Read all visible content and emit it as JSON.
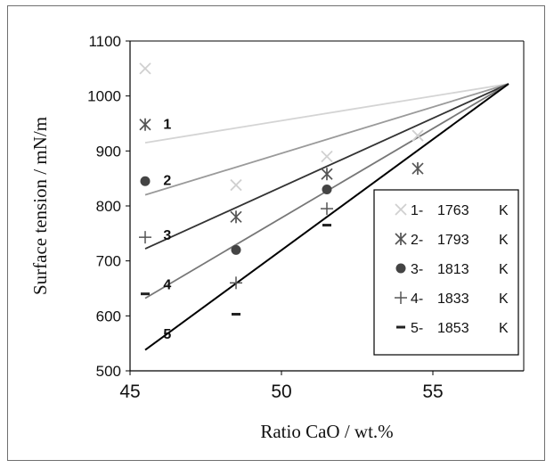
{
  "chart_data": {
    "type": "scatter",
    "xlabel": "Ratio CaO / wt.%",
    "ylabel": "Surface tension / mN/m",
    "xlim": [
      45,
      58
    ],
    "ylim": [
      500,
      1100
    ],
    "x_ticks": [
      "45",
      "50",
      "55"
    ],
    "y_ticks": [
      "500",
      "600",
      "700",
      "800",
      "900",
      "1000",
      "1100"
    ],
    "grid": false,
    "legend_position": "bottom-right",
    "series": [
      {
        "name": "1763",
        "number_label": "1",
        "legend_text": "1-",
        "unit": "K",
        "marker": "x",
        "color": "#d0d0d0",
        "points": [
          [
            45.5,
            1050
          ],
          [
            48.5,
            838
          ],
          [
            51.5,
            890
          ],
          [
            54.5,
            928
          ]
        ],
        "fit_line": [
          [
            45.5,
            915
          ],
          [
            57.5,
            1022
          ]
        ]
      },
      {
        "name": "1793",
        "number_label": "2",
        "legend_text": "2-",
        "unit": "K",
        "marker": "asterisk",
        "color": "#555555",
        "points": [
          [
            45.5,
            948
          ],
          [
            48.5,
            780
          ],
          [
            51.5,
            858
          ],
          [
            54.5,
            868
          ]
        ],
        "fit_line": [
          [
            45.5,
            820
          ],
          [
            57.5,
            1022
          ]
        ]
      },
      {
        "name": "1813",
        "number_label": "3",
        "legend_text": "3-",
        "unit": "K",
        "marker": "circle",
        "color": "#444444",
        "points": [
          [
            45.5,
            845
          ],
          [
            48.5,
            720
          ],
          [
            51.5,
            830
          ]
        ],
        "fit_line": [
          [
            45.5,
            722
          ],
          [
            57.5,
            1022
          ]
        ]
      },
      {
        "name": "1833",
        "number_label": "4",
        "legend_text": "4-",
        "unit": "K",
        "marker": "plus",
        "color": "#555555",
        "points": [
          [
            45.5,
            743
          ],
          [
            48.5,
            660
          ],
          [
            51.5,
            795
          ]
        ],
        "fit_line": [
          [
            45.5,
            632
          ],
          [
            57.5,
            1022
          ]
        ]
      },
      {
        "name": "1853",
        "number_label": "5",
        "legend_text": "5-",
        "unit": "K",
        "marker": "dash",
        "color": "#222222",
        "points": [
          [
            45.5,
            640
          ],
          [
            48.5,
            603
          ],
          [
            51.5,
            765
          ]
        ],
        "fit_line": [
          [
            45.5,
            538
          ],
          [
            57.5,
            1022
          ]
        ]
      }
    ],
    "series_number_labels": [
      {
        "text": "1",
        "x": 46.1,
        "y": 950
      },
      {
        "text": "2",
        "x": 46.1,
        "y": 848
      },
      {
        "text": "3",
        "x": 46.1,
        "y": 748
      },
      {
        "text": "4",
        "x": 46.1,
        "y": 658
      },
      {
        "text": "5",
        "x": 46.1,
        "y": 568
      }
    ]
  }
}
